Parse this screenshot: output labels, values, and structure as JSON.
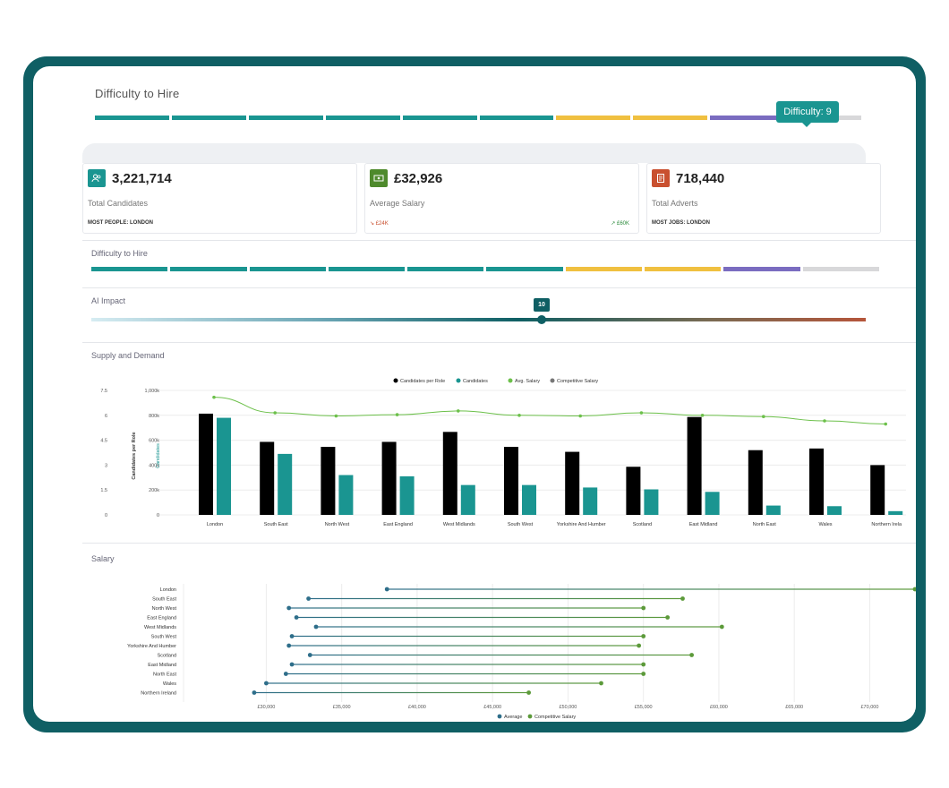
{
  "top": {
    "title": "Difficulty to Hire",
    "tooltip": "Difficulty: 9",
    "segments": [
      "#1a9591",
      "#1a9591",
      "#1a9591",
      "#1a9591",
      "#1a9591",
      "#1a9591",
      "#f0c040",
      "#f0c040",
      "#7a6cc0",
      "#d8d8da"
    ]
  },
  "stats": [
    {
      "value": "3,221,714",
      "label": "Total Candidates",
      "sub": "MOST PEOPLE: LONDON",
      "sub_right": "",
      "icon": "people-icon",
      "color": "#1a9591"
    },
    {
      "value": "£32,926",
      "label": "Average Salary",
      "sub": "↘ £24K",
      "sub_right": "↗ £60K",
      "icon": "money-icon",
      "color": "#4e8a2c"
    },
    {
      "value": "718,440",
      "label": "Total Adverts",
      "sub": "MOST JOBS: LONDON",
      "sub_right": "",
      "icon": "document-icon",
      "color": "#c9502f"
    }
  ],
  "difficulty": {
    "title": "Difficulty to Hire",
    "segments": [
      "#1a9591",
      "#1a9591",
      "#1a9591",
      "#1a9591",
      "#1a9591",
      "#1a9591",
      "#f0c040",
      "#f0c040",
      "#7a6cc0",
      "#d8d8da"
    ]
  },
  "ai_impact": {
    "title": "AI Impact",
    "value": "10"
  },
  "supply": {
    "title": "Supply and Demand"
  },
  "salary": {
    "title": "Salary"
  },
  "chart_data": [
    {
      "type": "bar",
      "legend": [
        "Candidates per Role",
        "Candidates",
        "Avg. Salary",
        "Competitive Salary"
      ],
      "categories": [
        "London",
        "South East",
        "North West",
        "East England",
        "West Midlands",
        "South West",
        "Yorkshire And Humber",
        "Scotland",
        "East Midland",
        "North East",
        "Wales",
        "Northern Irela"
      ],
      "left_axis_ticks": [
        "0",
        "1.5",
        "3",
        "4.5",
        "6",
        "7.5"
      ],
      "left_axis_label": "Candidates per Role",
      "right_axis_ticks": [
        "0",
        "200k",
        "400k",
        "600k",
        "800k",
        "1,000k"
      ],
      "right_axis_label": "Candidates",
      "ylim_left": [
        0,
        7.5
      ],
      "ylim_right": [
        0,
        1000000
      ],
      "series": [
        {
          "name": "Candidates per Role",
          "color": "#000000",
          "values": [
            6.1,
            4.4,
            4.1,
            4.4,
            5.0,
            4.1,
            3.8,
            2.9,
            5.9,
            3.9,
            4.0,
            3.0
          ]
        },
        {
          "name": "Candidates",
          "color": "#1a9591",
          "values": [
            780000,
            490000,
            320000,
            310000,
            240000,
            240000,
            220000,
            205000,
            185000,
            75000,
            70000,
            30000
          ]
        },
        {
          "name": "Avg. Salary",
          "color": "#6cc04a",
          "values": [
            945000,
            820000,
            795000,
            805000,
            835000,
            800000,
            795000,
            820000,
            800000,
            790000,
            755000,
            730000
          ]
        }
      ]
    },
    {
      "type": "dumbbell",
      "categories": [
        "London",
        "South East",
        "North West",
        "East England",
        "West Midlands",
        "South West",
        "Yorkshire And Humber",
        "Scotland",
        "East Midland",
        "North East",
        "Wales",
        "Northern Ireland"
      ],
      "x_ticks": [
        "£30,000",
        "£35,000",
        "£40,000",
        "£45,000",
        "£50,000",
        "£55,000",
        "£60,000",
        "£65,000",
        "£70,000"
      ],
      "xlim": [
        26000,
        73000
      ],
      "legend": [
        "Average",
        "Competitive Salary"
      ],
      "series": [
        {
          "name": "Average",
          "color": "#2e6e8a",
          "values": [
            38000,
            32800,
            31500,
            32000,
            33300,
            31700,
            31500,
            32900,
            31700,
            31300,
            30000,
            29200
          ]
        },
        {
          "name": "Competitive Salary",
          "color": "#5c9a3a",
          "values": [
            73000,
            57600,
            55000,
            56600,
            60200,
            55000,
            54700,
            58200,
            55000,
            55000,
            52200,
            47400
          ]
        }
      ]
    }
  ]
}
